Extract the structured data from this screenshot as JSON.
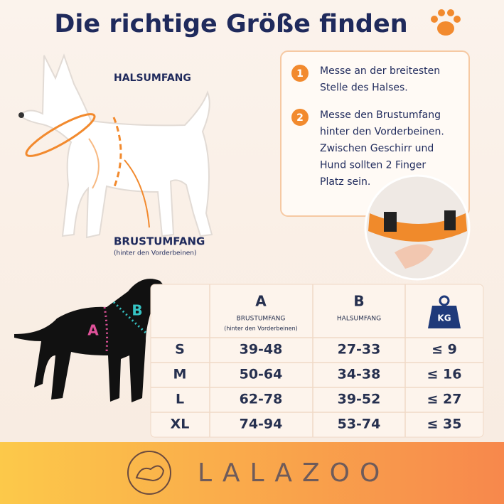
{
  "title": "Die richtige Größe finden",
  "dog_labels": {
    "neck": "HALSUMFANG",
    "chest": "BRUSTUMFANG",
    "chest_note": "(hinter den Vorderbeinen)"
  },
  "steps": [
    {
      "number": "1",
      "lines": [
        "Messe an der breitesten",
        "Stelle des Halses."
      ]
    },
    {
      "number": "2",
      "lines": [
        "Messe den Brustumfang",
        "hinter den Vorderbeinen.",
        "Zwischen Geschirr und",
        "Hund sollten 2 Finger",
        "Platz sein."
      ]
    }
  ],
  "diagram_labels": {
    "a": "A",
    "b": "B"
  },
  "table": {
    "header": {
      "a": {
        "letter": "A",
        "name": "BRUSTUMFANG",
        "note": "(hinter den Vorderbeinen)"
      },
      "b": {
        "letter": "B",
        "name": "HALSUMFANG"
      },
      "weight": "KG"
    },
    "rows": [
      [
        "S",
        "39-48",
        "27-33",
        "≤ 9"
      ],
      [
        "M",
        "50-64",
        "34-38",
        "≤ 16"
      ],
      [
        "L",
        "62-78",
        "39-52",
        "≤ 27"
      ],
      [
        "XL",
        "74-94",
        "53-74",
        "≤ 35"
      ]
    ]
  },
  "brand": "LALAZOO"
}
